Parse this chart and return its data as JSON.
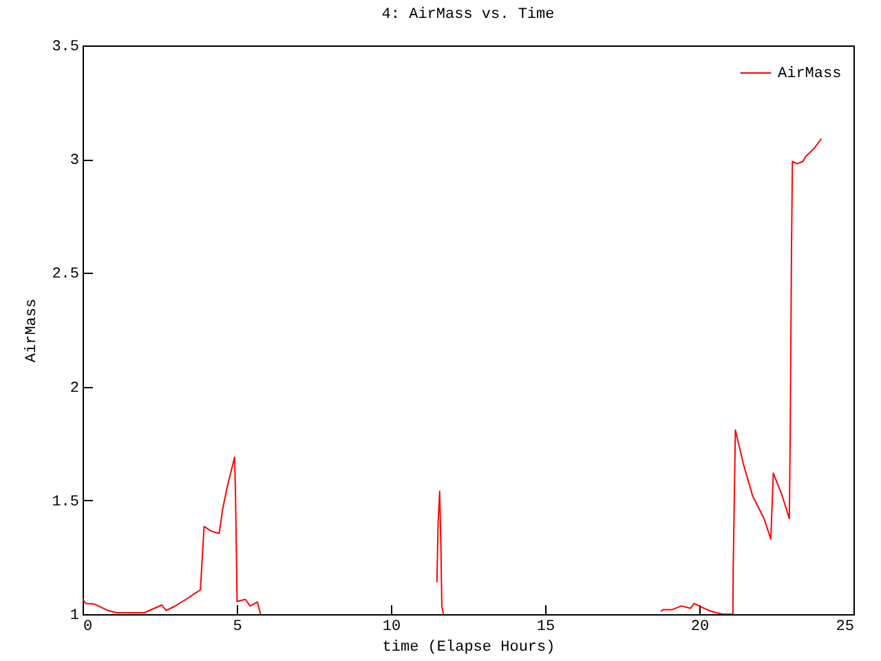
{
  "chart_data": {
    "type": "line",
    "title": "4: AirMass vs. Time",
    "xlabel": "time (Elapse Hours)",
    "ylabel": "AirMass",
    "xlim": [
      0,
      25
    ],
    "ylim": [
      1,
      3.5
    ],
    "xticks": [
      0,
      5,
      10,
      15,
      20,
      25
    ],
    "yticks": [
      1,
      1.5,
      2,
      2.5,
      3,
      3.5
    ],
    "grid": false,
    "legend": "top right",
    "marker": "none",
    "line_style": "solid",
    "series": [
      {
        "name": "AirMass",
        "color": "#ff0000",
        "x": [
          0,
          0.1,
          0.37,
          0.82,
          1.12,
          2.0,
          2.57,
          2.71,
          2.98,
          3.35,
          3.82,
          3.94,
          4.17,
          4.43,
          4.54,
          4.69,
          4.93,
          4.96,
          5.01,
          5.28,
          5.43,
          5.67,
          5.77,
          5.8,
          11.45,
          11.49,
          11.53,
          11.58,
          11.62,
          11.65,
          11.7,
          11.75,
          18.7,
          18.75,
          18.82,
          19.12,
          19.42,
          19.72,
          19.83,
          20.09,
          20.39,
          20.76,
          21.09,
          21.1,
          21.17,
          21.43,
          21.73,
          22.1,
          22.32,
          22.4,
          22.69,
          22.92,
          22.95,
          22.99,
          23.02,
          23.17,
          23.36,
          23.44,
          23.74,
          23.96
        ],
        "values": [
          1.067,
          1.047,
          1.045,
          1.016,
          1.006,
          1.006,
          1.04,
          1.016,
          1.034,
          1.065,
          1.107,
          1.386,
          1.365,
          1.355,
          1.46,
          1.56,
          1.69,
          1.52,
          1.056,
          1.065,
          1.036,
          1.053,
          1.0,
          null,
          null,
          1.14,
          1.4,
          1.54,
          1.3,
          1.036,
          1.0,
          null,
          null,
          1.012,
          1.02,
          1.02,
          1.036,
          1.026,
          1.047,
          1.03,
          1.012,
          1.0,
          1.0,
          1.2,
          1.81,
          1.66,
          1.52,
          1.42,
          1.33,
          1.62,
          1.52,
          1.42,
          1.81,
          2.6,
          2.99,
          2.98,
          2.99,
          3.01,
          3.05,
          3.09
        ]
      }
    ]
  }
}
